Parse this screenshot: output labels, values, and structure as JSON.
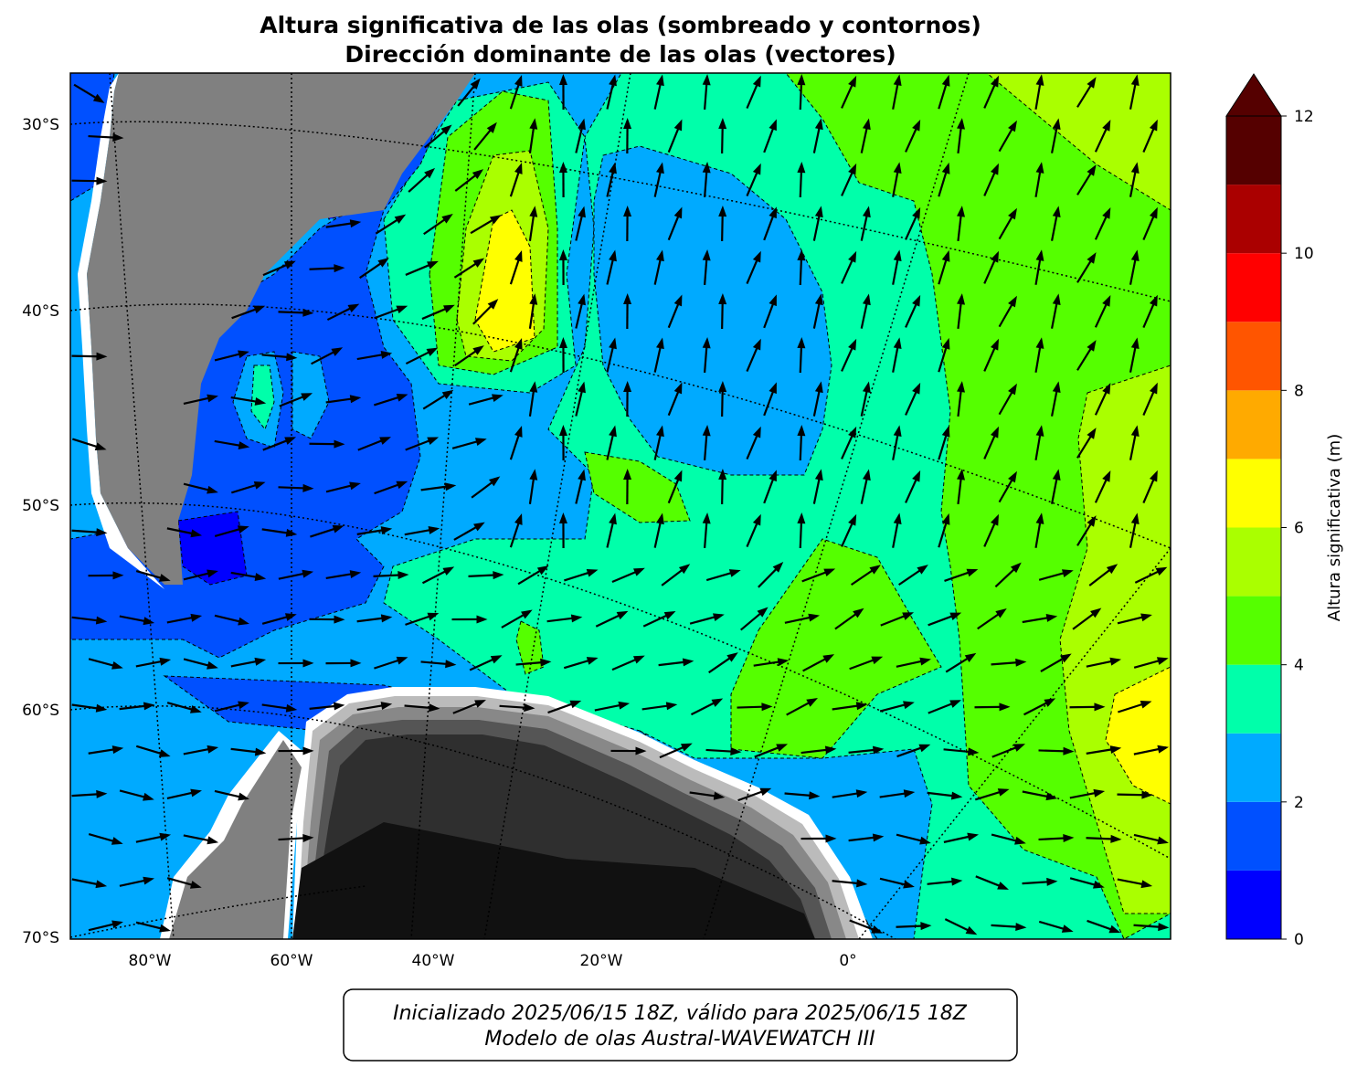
{
  "title": [
    "Altura significativa de las olas (sombreado y contornos)",
    "Dirección dominante de las olas (vectores)"
  ],
  "map": {
    "lat_labels": [
      "30°S",
      "40°S",
      "50°S",
      "60°S",
      "70°S"
    ],
    "lon_labels": [
      "80°W",
      "60°W",
      "40°W",
      "20°W",
      "0°"
    ]
  },
  "colorbar": {
    "label": "Altura significativa (m)",
    "levels": [
      0,
      1,
      2,
      3,
      4,
      5,
      6,
      7,
      8,
      9,
      10,
      11,
      12
    ],
    "colors": [
      "#0000ff",
      "#0050ff",
      "#00aaff",
      "#00ffaa",
      "#55ff00",
      "#aaff00",
      "#ffff00",
      "#ffaa00",
      "#ff5500",
      "#ff0000",
      "#aa0000",
      "#550000"
    ],
    "ticks": [
      0,
      2,
      4,
      6,
      8,
      10,
      12
    ],
    "extend": "max",
    "extend_color": "#550000"
  },
  "footer": [
    "Inicializado 2025/06/15 18Z, válido para 2025/06/15 18Z",
    "Modelo de olas Austral-WAVEWATCH III"
  ]
}
